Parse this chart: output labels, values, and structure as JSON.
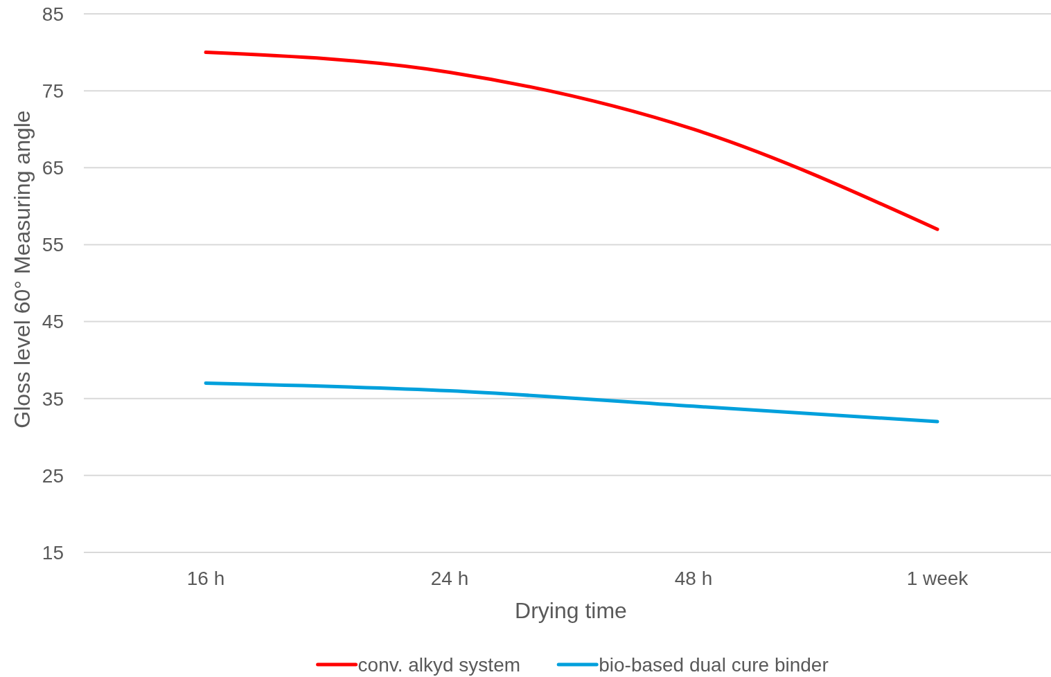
{
  "chart_data": {
    "type": "line",
    "xlabel": "Drying time",
    "ylabel": "Gloss level 60° Measuring angle",
    "categories": [
      "16 h",
      "24 h",
      "48 h",
      "1 week"
    ],
    "series": [
      {
        "name": "conv. alkyd system",
        "color": "#ff0000",
        "values": [
          80,
          77.4,
          70,
          57
        ]
      },
      {
        "name": "bio-based dual cure binder",
        "color": "#00a0dc",
        "values": [
          37,
          36,
          34,
          32
        ]
      }
    ],
    "ylim": [
      15,
      85
    ],
    "yticks": [
      15,
      25,
      35,
      45,
      55,
      65,
      75,
      85
    ],
    "grid": "y",
    "legend": "bottom",
    "marker": "none",
    "line_style": "solid"
  }
}
